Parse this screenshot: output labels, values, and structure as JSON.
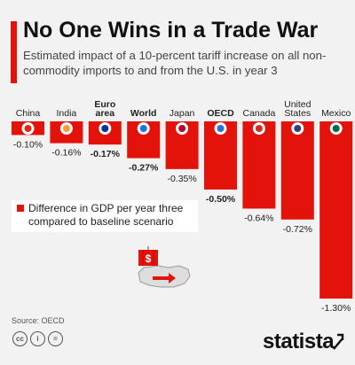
{
  "header": {
    "title": "No One Wins in a Trade War",
    "subtitle": "Estimated impact of a 10-percent tariff increase on all non-commodity imports to and from the U.S. in year 3"
  },
  "legend": {
    "text": "Difference in GDP per year three compared to baseline scenario"
  },
  "footer": {
    "source": "Source: OECD",
    "brand": "statista",
    "icons": [
      "creative-commons-icon",
      "attribution-icon",
      "no-derivatives-icon"
    ]
  },
  "colors": {
    "bar": "#e3120b",
    "background": "#f2f2f2"
  },
  "chart_data": {
    "type": "bar",
    "title": "No One Wins in a Trade War",
    "categories": [
      "China",
      "India",
      "Euro area",
      "World",
      "Japan",
      "OECD",
      "Canada",
      "United States",
      "Mexico"
    ],
    "values": [
      -0.1,
      -0.16,
      -0.17,
      -0.27,
      -0.35,
      -0.5,
      -0.64,
      -0.72,
      -1.3
    ],
    "value_labels": [
      "-0.10%",
      "-0.16%",
      "-0.17%",
      "-0.27%",
      "-0.35%",
      "-0.50%",
      "-0.64%",
      "-0.72%",
      "-1.30%"
    ],
    "bold_categories": [
      "Euro area",
      "World",
      "OECD"
    ],
    "flag_icons": [
      "china-flag-icon",
      "india-flag-icon",
      "euro-area-flag-icon",
      "world-globe-icon",
      "japan-flag-icon",
      "oecd-logo-icon",
      "canada-flag-icon",
      "usa-flag-icon",
      "mexico-flag-icon"
    ],
    "ylim": [
      -1.3,
      0
    ],
    "xlabel": "",
    "ylabel": "",
    "grid": false,
    "legend_position": "left"
  }
}
